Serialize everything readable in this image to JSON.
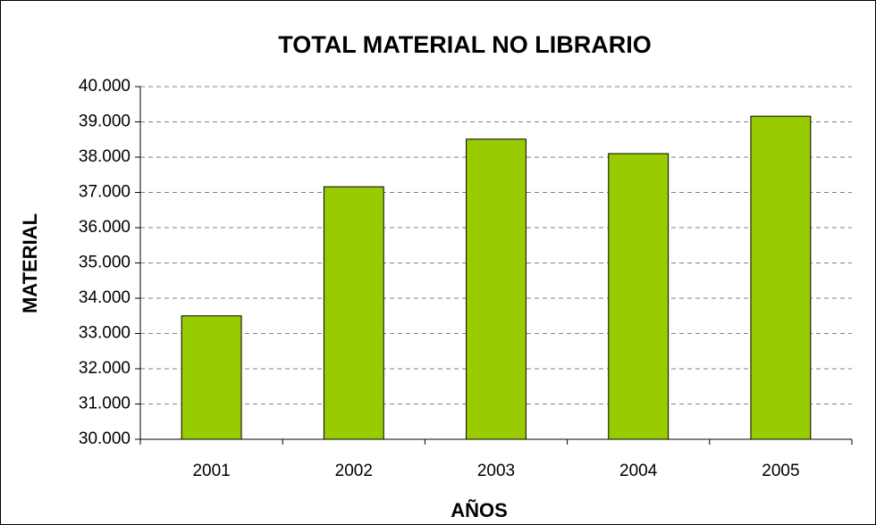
{
  "chart_data": {
    "type": "bar",
    "title": "TOTAL MATERIAL NO LIBRARIO",
    "x_label": "AÑOS",
    "y_label": "MATERIAL",
    "categories": [
      "2001",
      "2002",
      "2003",
      "2004",
      "2005"
    ],
    "values": [
      33500,
      37160,
      38510,
      38100,
      39160
    ],
    "color": "#99cc00",
    "ylim": [
      30000,
      40000
    ],
    "yticks": [
      {
        "value": 30000,
        "label": "30.000"
      },
      {
        "value": 31000,
        "label": "31.000"
      },
      {
        "value": 32000,
        "label": "32.000"
      },
      {
        "value": 33000,
        "label": "33.000"
      },
      {
        "value": 34000,
        "label": "34.000"
      },
      {
        "value": 35000,
        "label": "35.000"
      },
      {
        "value": 36000,
        "label": "36.000"
      },
      {
        "value": 37000,
        "label": "37.000"
      },
      {
        "value": 38000,
        "label": "38.000"
      },
      {
        "value": 39000,
        "label": "39.000"
      },
      {
        "value": 40000,
        "label": "40.000"
      }
    ],
    "grid": true
  }
}
